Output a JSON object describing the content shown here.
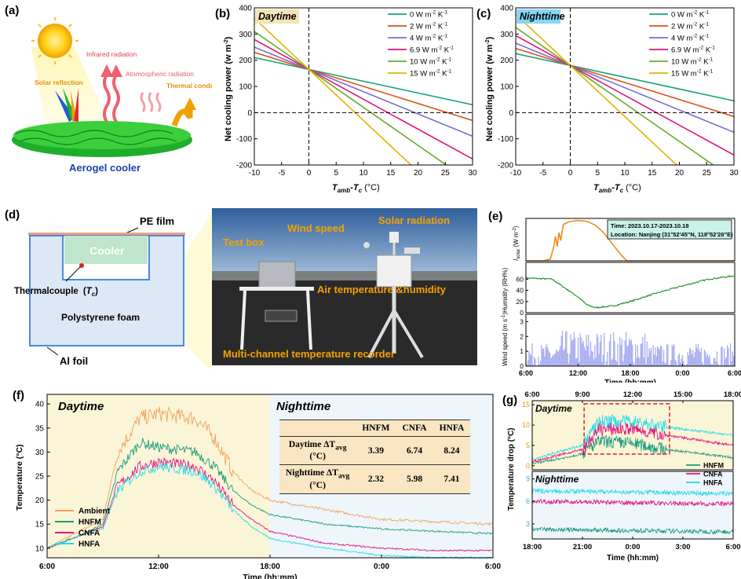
{
  "panel_labels": {
    "a": "(a)",
    "b": "(b)",
    "c": "(c)",
    "d": "(d)",
    "e": "(e)",
    "f": "(f)",
    "g": "(g)"
  },
  "panel_a": {
    "solar_reflection": "Solar reflection",
    "infrared": "Infrared radiation",
    "atmospheric": "Atomospheric radiation",
    "thermal": "Thermal conduction and convection",
    "caption": "Aerogel cooler"
  },
  "panel_d": {
    "pe_film": "PE film",
    "cooler": "Cooler",
    "thermocouple": "Thermalcouple",
    "tc_symbol": "T",
    "tc_sub": "c",
    "foam": "Polystyrene foam",
    "foil": "Al foil",
    "photo_labels": {
      "test_box": "Test box",
      "wind": "Wind speed",
      "solar": "Solar radiation",
      "air": "Air temperature &humidity",
      "recorder": "Multi-channel temperature recorder"
    }
  },
  "colors": {
    "c0": "#1aa37f",
    "c2": "#d9541a",
    "c4": "#7b6fd0",
    "c69": "#e0157a",
    "c10": "#6aaa2a",
    "c15": "#e2b400",
    "ambient": "#f2a15a",
    "hnfm": "#1a9b7a",
    "cnfa": "#e3137f",
    "hnfa": "#22d8ea",
    "solar": "#f08a1e",
    "humid": "#1d8a1d",
    "wind": "#a8aef0"
  },
  "chart_data": [
    {
      "id": "b",
      "type": "line",
      "title": "Daytime",
      "xlabel": "T",
      "xlabel_sub": "amb",
      "xlabel_mid": "-T",
      "xlabel_sub2": "c",
      "xlabel_unit": " (°C)",
      "ylabel": "Net cooling power (w m",
      "ylabel_sup": "-2",
      "ylabel_end": ")",
      "xlim": [
        -10,
        30
      ],
      "ylim": [
        -200,
        400
      ],
      "xticks": [
        -10,
        -5,
        0,
        5,
        10,
        15,
        20,
        25,
        30
      ],
      "yticks": [
        -200,
        -100,
        0,
        100,
        200,
        300,
        400
      ],
      "legend_position": "top-right",
      "series": [
        {
          "name": "0 W m",
          "sup": "-2",
          "name2": " K",
          "sup2": "-1",
          "h": 0,
          "color": "#1aa37f"
        },
        {
          "name": "2 W m",
          "sup": "-2",
          "name2": " K",
          "sup2": "-1",
          "h": 2,
          "color": "#d9541a"
        },
        {
          "name": "4 W m",
          "sup": "-2",
          "name2": " K",
          "sup2": "-1",
          "h": 4,
          "color": "#7b6fd0"
        },
        {
          "name": "6.9 W m",
          "sup": "-2",
          "name2": " K",
          "sup2": "-1",
          "h": 6.9,
          "color": "#e0157a"
        },
        {
          "name": "10 W m",
          "sup": "-2",
          "name2": " K",
          "sup2": "-1",
          "h": 10,
          "color": "#6aaa2a"
        },
        {
          "name": "15 W m",
          "sup": "-2",
          "name2": " K",
          "sup2": "-1",
          "h": 15,
          "color": "#e2b400"
        }
      ],
      "intercept": 165,
      "base_slope": -4.5
    },
    {
      "id": "c",
      "type": "line",
      "title": "Nighttime",
      "xlabel": "T",
      "xlabel_sub": "amb",
      "xlabel_mid": "-T",
      "xlabel_sub2": "c",
      "xlabel_unit": " (°C)",
      "ylabel": "Net cooling power (w m",
      "ylabel_sup": "-2",
      "ylabel_end": ")",
      "xlim": [
        -10,
        30
      ],
      "ylim": [
        -200,
        400
      ],
      "xticks": [
        -10,
        -5,
        0,
        5,
        10,
        15,
        20,
        25,
        30
      ],
      "yticks": [
        -200,
        -100,
        0,
        100,
        200,
        300,
        400
      ],
      "legend_position": "top-right",
      "series": [
        {
          "name": "0 W m",
          "sup": "-2",
          "name2": " K",
          "sup2": "-1",
          "h": 0,
          "color": "#1aa37f"
        },
        {
          "name": "2 W m",
          "sup": "-2",
          "name2": " K",
          "sup2": "-1",
          "h": 2,
          "color": "#d9541a"
        },
        {
          "name": "4 W m",
          "sup": "-2",
          "name2": " K",
          "sup2": "-1",
          "h": 4,
          "color": "#7b6fd0"
        },
        {
          "name": "6.9 W m",
          "sup": "-2",
          "name2": " K",
          "sup2": "-1",
          "h": 6.9,
          "color": "#e0157a"
        },
        {
          "name": "10 W m",
          "sup": "-2",
          "name2": " K",
          "sup2": "-1",
          "h": 10,
          "color": "#6aaa2a"
        },
        {
          "name": "15 W m",
          "sup": "-2",
          "name2": " K",
          "sup2": "-1",
          "h": 15,
          "color": "#e2b400"
        }
      ],
      "intercept": 180,
      "base_slope": -4.5
    },
    {
      "id": "e",
      "type": "line",
      "info_time": "Time: 2023.10.17-2023.10.18",
      "info_loc": "Location: Nanjing (31°52′45″N, 118°52′26″E)",
      "xlabel": "Time (hh:mm)",
      "xticks": [
        "6:00",
        "12:00",
        "18:00",
        "0:00",
        "6:00"
      ],
      "sub": [
        {
          "ylabel_pre": "I",
          "ylabel_sub": "solar",
          "ylabel": " (W m",
          "ylabel_sup": "-2",
          "ylabel_end": ")",
          "ylim": [
            0,
            1000
          ],
          "yticks": []
        },
        {
          "ylabel": "Humidity (RH%)",
          "ylim": [
            0,
            100
          ],
          "yticks": [
            0,
            20,
            40,
            60
          ],
          "points": [
            [
              0,
              62
            ],
            [
              3,
              60
            ],
            [
              6,
              28
            ],
            [
              7,
              14
            ],
            [
              8,
              9
            ],
            [
              10,
              12
            ],
            [
              12,
              20
            ],
            [
              15,
              35
            ],
            [
              18,
              48
            ],
            [
              21,
              60
            ],
            [
              24,
              66
            ]
          ]
        },
        {
          "ylabel_pre": "Wind speed (m s",
          "ylabel_sup": "-1",
          "ylabel_end": ")",
          "ylim": [
            0,
            3.5
          ],
          "yticks": [
            0,
            1,
            2,
            3
          ]
        }
      ],
      "solar_points": [
        [
          0,
          0
        ],
        [
          2,
          0
        ],
        [
          2.8,
          40
        ],
        [
          3.2,
          350
        ],
        [
          3.4,
          600
        ],
        [
          3.6,
          350
        ],
        [
          3.8,
          700
        ],
        [
          4,
          500
        ],
        [
          4.3,
          900
        ],
        [
          5,
          970
        ],
        [
          6,
          1000
        ],
        [
          7,
          980
        ],
        [
          8,
          880
        ],
        [
          9,
          680
        ],
        [
          10,
          400
        ],
        [
          11,
          130
        ],
        [
          11.6,
          0
        ],
        [
          24,
          0
        ]
      ]
    },
    {
      "id": "f",
      "type": "line",
      "xlabel": "Time (hh:mm)",
      "ylabel": "Temperature (°C)",
      "ylim": [
        8,
        42
      ],
      "yticks": [
        10,
        15,
        20,
        25,
        30,
        35,
        40
      ],
      "xticks": [
        "6:00",
        "12:00",
        "18:00",
        "0:00",
        "6:00"
      ],
      "day_label": "Daytime",
      "night_label": "Nighttime",
      "legend_position": "bottom-left",
      "series": [
        {
          "name": "Ambient",
          "color": "#f2a15a",
          "points": [
            [
              0,
              10
            ],
            [
              2,
              14
            ],
            [
              3,
              16
            ],
            [
              3.8,
              30
            ],
            [
              5,
              37
            ],
            [
              6,
              38
            ],
            [
              8,
              37
            ],
            [
              9,
              33
            ],
            [
              10,
              26
            ],
            [
              11,
              22
            ],
            [
              12,
              20
            ],
            [
              15,
              18
            ],
            [
              18,
              16
            ],
            [
              21,
              15.5
            ],
            [
              24,
              15
            ]
          ]
        },
        {
          "name": "HNFM",
          "color": "#1a9b7a",
          "points": [
            [
              0,
              10
            ],
            [
              2,
              13
            ],
            [
              3,
              15
            ],
            [
              3.8,
              26
            ],
            [
              5,
              32
            ],
            [
              6,
              31
            ],
            [
              8,
              30
            ],
            [
              9,
              27
            ],
            [
              10,
              22
            ],
            [
              11,
              19
            ],
            [
              12,
              17
            ],
            [
              15,
              15
            ],
            [
              18,
              14
            ],
            [
              21,
              13.5
            ],
            [
              24,
              13
            ]
          ]
        },
        {
          "name": "CNFA",
          "color": "#e3137f",
          "points": [
            [
              0,
              10
            ],
            [
              2,
              13
            ],
            [
              3,
              14.5
            ],
            [
              3.8,
              23
            ],
            [
              5,
              27
            ],
            [
              6,
              28
            ],
            [
              8,
              27
            ],
            [
              9,
              24
            ],
            [
              10,
              19
            ],
            [
              11,
              16
            ],
            [
              12,
              13.5
            ],
            [
              15,
              11
            ],
            [
              18,
              10
            ],
            [
              21,
              9.5
            ],
            [
              24,
              9.5
            ]
          ]
        },
        {
          "name": "HNFA",
          "color": "#22d8ea",
          "points": [
            [
              0,
              10
            ],
            [
              2,
              13
            ],
            [
              3,
              14
            ],
            [
              3.8,
              22
            ],
            [
              5,
              26
            ],
            [
              6,
              27
            ],
            [
              8,
              26
            ],
            [
              9,
              23
            ],
            [
              10,
              18
            ],
            [
              11,
              14.5
            ],
            [
              12,
              12
            ],
            [
              15,
              10
            ],
            [
              18,
              8.5
            ],
            [
              21,
              8
            ],
            [
              24,
              8
            ]
          ]
        }
      ],
      "table": {
        "headers": [
          "",
          "HNFM",
          "CNFA",
          "HNFA"
        ],
        "rows": [
          {
            "label": "Daytime ΔT",
            "label_sub": "avg",
            "label_unit": "(°C)",
            "values": [
              "3.39",
              "6.74",
              "8.24"
            ]
          },
          {
            "label": "Nighttime ΔT",
            "label_sub": "avg",
            "label_unit": "(°C)",
            "values": [
              "2.32",
              "5.98",
              "7.41"
            ]
          }
        ]
      }
    },
    {
      "id": "g",
      "type": "line",
      "xlabel": "Time (hh:mm)",
      "ylabel": "Temperature drop (°C)",
      "top_xticks": [
        "6:00",
        "9:00",
        "12:00",
        "15:00",
        "18:00"
      ],
      "bottom_xticks": [
        "18:00",
        "21:00",
        "0:00",
        "3:00",
        "6:00"
      ],
      "day_label": "Daytime",
      "night_label": "Nighttime",
      "day_yticks": [
        0,
        5,
        10,
        15
      ],
      "night_yticks": [
        3,
        6,
        9
      ],
      "legend_position": "right",
      "series": [
        {
          "name": "HNFM",
          "color": "#1a9b7a",
          "day": [
            [
              0,
              0.5
            ],
            [
              2,
              2
            ],
            [
              3,
              3
            ],
            [
              4,
              6
            ],
            [
              6,
              5.5
            ],
            [
              8,
              4
            ],
            [
              12,
              2
            ]
          ],
          "night": 2.3
        },
        {
          "name": "CNFA",
          "color": "#e3137f",
          "day": [
            [
              0,
              1
            ],
            [
              2,
              3
            ],
            [
              3,
              4
            ],
            [
              4,
              9
            ],
            [
              6,
              9
            ],
            [
              8,
              7.5
            ],
            [
              12,
              5
            ]
          ],
          "night": 6.0
        },
        {
          "name": "HNFA",
          "color": "#22d8ea",
          "day": [
            [
              0,
              1.5
            ],
            [
              2,
              4
            ],
            [
              3,
              5
            ],
            [
              4,
              11
            ],
            [
              6,
              11
            ],
            [
              8,
              9.5
            ],
            [
              12,
              7.5
            ]
          ],
          "night": 7.4
        }
      ]
    }
  ]
}
